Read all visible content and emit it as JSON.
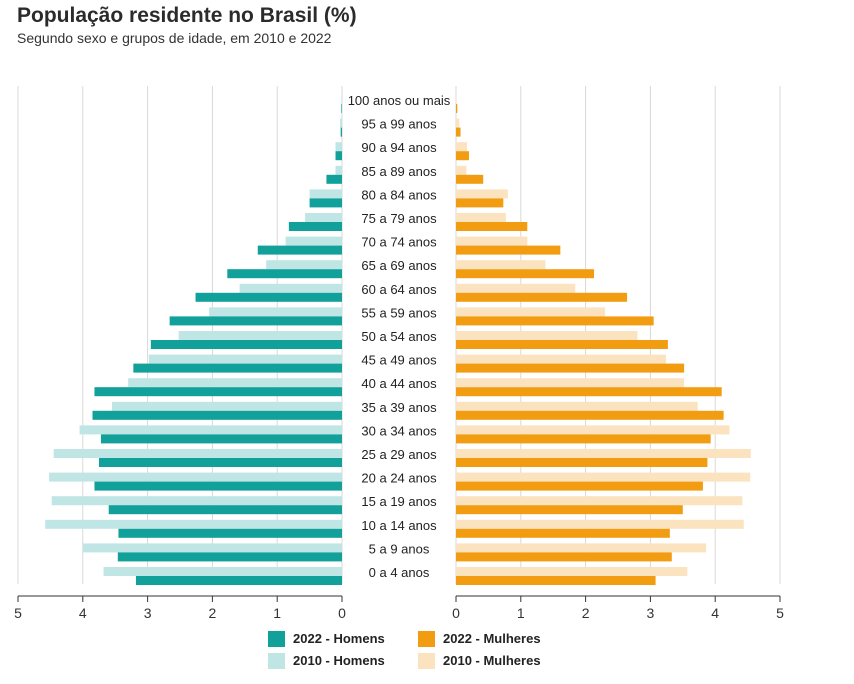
{
  "title": "População residente no Brasil (%)",
  "subtitle": "Segundo sexo e grupos de idade, em 2010 e 2022",
  "colors": {
    "men_2022": "#12a09a",
    "men_2010": "#bfe6e5",
    "women_2022": "#f29c12",
    "women_2010": "#fbe3bf",
    "grid": "#d9d9d9"
  },
  "legend": {
    "men_2022": "2022 - Homens",
    "women_2022": "2022 - Mulheres",
    "men_2010": "2010 - Homens",
    "women_2010": "2010 - Mulheres"
  },
  "chart_data": {
    "type": "bar",
    "orientation": "horizontal",
    "title": "População residente no Brasil (%)",
    "subtitle": "Segundo sexo e grupos de idade, em 2010 e 2022",
    "categories": [
      "100 anos ou mais",
      "95 a 99 anos",
      "90 a 94 anos",
      "85 a 89 anos",
      "80 a 84 anos",
      "75 a 79 anos",
      "70 a 74 anos",
      "65 a 69 anos",
      "60 a 64 anos",
      "55 a 59 anos",
      "50 a 54 anos",
      "45 a 49 anos",
      "40 a 44 anos",
      "35 a 39 anos",
      "30 a 34 anos",
      "25 a 29 anos",
      "20 a 24 anos",
      "15 a 19 anos",
      "10 a 14 anos",
      "5 a 9 anos",
      "0 a 4 anos"
    ],
    "series": [
      {
        "name": "2010 - Homens",
        "side": "left",
        "values": [
          0.01,
          0.03,
          0.1,
          0.1,
          0.5,
          0.57,
          0.87,
          1.17,
          1.58,
          2.05,
          2.52,
          2.98,
          3.3,
          3.55,
          4.05,
          4.45,
          4.52,
          4.48,
          4.58,
          4.0,
          3.68
        ]
      },
      {
        "name": "2022 - Homens",
        "side": "left",
        "values": [
          0.01,
          0.02,
          0.1,
          0.24,
          0.5,
          0.82,
          1.3,
          1.77,
          2.26,
          2.66,
          2.95,
          3.22,
          3.82,
          3.85,
          3.72,
          3.75,
          3.82,
          3.6,
          3.45,
          3.46,
          3.18
        ]
      },
      {
        "name": "2010 - Mulheres",
        "side": "right",
        "values": [
          0.01,
          0.05,
          0.17,
          0.16,
          0.8,
          0.77,
          1.1,
          1.38,
          1.84,
          2.3,
          2.8,
          3.24,
          3.52,
          3.73,
          4.22,
          4.55,
          4.54,
          4.42,
          4.44,
          3.86,
          3.57
        ]
      },
      {
        "name": "2022 - Mulheres",
        "side": "right",
        "values": [
          0.02,
          0.07,
          0.2,
          0.42,
          0.73,
          1.1,
          1.61,
          2.13,
          2.64,
          3.05,
          3.27,
          3.52,
          4.1,
          4.13,
          3.93,
          3.88,
          3.81,
          3.5,
          3.3,
          3.33,
          3.08
        ]
      }
    ],
    "xaxis_left": {
      "ticks": [
        "5",
        "4",
        "3",
        "2",
        "1",
        "0"
      ],
      "range": [
        0,
        5
      ],
      "reversed": true
    },
    "xaxis_right": {
      "ticks": [
        "0",
        "1",
        "2",
        "3",
        "4",
        "5"
      ],
      "range": [
        0,
        5
      ]
    },
    "grid": true,
    "legend_position": "bottom"
  }
}
